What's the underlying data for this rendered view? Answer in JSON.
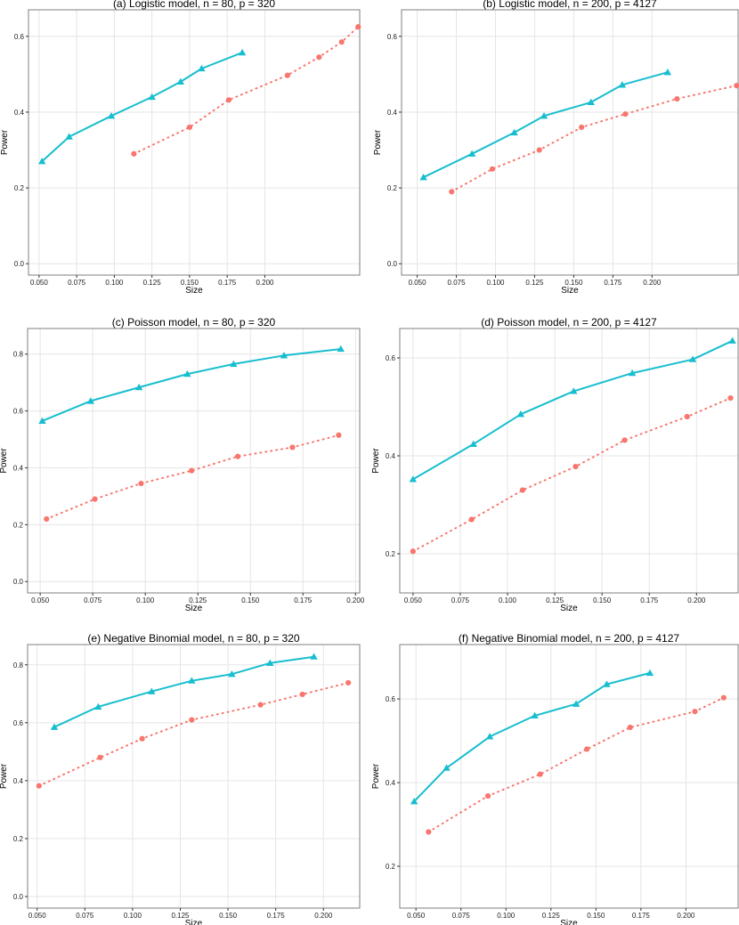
{
  "colors": {
    "series_triangle": "#17BECF",
    "series_circle": "#F8766D",
    "grid": "#E5E5E5",
    "panel_border": "#7F7F7F"
  },
  "chart_data": [
    {
      "type": "line",
      "title": "(a) Logistic model, n = 80, p = 320",
      "xlabel": "Size",
      "ylabel": "Power",
      "xlim": [
        0.043,
        0.263
      ],
      "ylim": [
        -0.03,
        0.67
      ],
      "xticks": [
        0.05,
        0.075,
        0.1,
        0.125,
        0.15,
        0.175,
        0.2
      ],
      "xtick_labels": [
        "0.050",
        "0.075",
        "0.100",
        "0.125",
        "0.150",
        "0.175",
        "0.200"
      ],
      "yticks": [
        0,
        0.2,
        0.4,
        0.6
      ],
      "ytick_labels": [
        "0.0",
        "0.2",
        "0.4",
        "0.6"
      ],
      "series": [
        {
          "name": "triangle solid",
          "marker": "triangle",
          "dash": "solid",
          "x": [
            0.052,
            0.07,
            0.098,
            0.125,
            0.144,
            0.158,
            0.185
          ],
          "y": [
            0.27,
            0.335,
            0.39,
            0.44,
            0.48,
            0.515,
            0.557
          ]
        },
        {
          "name": "circle dotted",
          "marker": "circle",
          "dash": "dotted",
          "x": [
            0.113,
            0.15,
            0.176,
            0.215,
            0.236,
            0.251,
            0.262
          ],
          "y": [
            0.29,
            0.36,
            0.432,
            0.497,
            0.545,
            0.585,
            0.625
          ]
        }
      ]
    },
    {
      "type": "line",
      "title": "(b) Logistic model, n = 200, p = 4127",
      "xlabel": "Size",
      "ylabel": "Power",
      "xlim": [
        0.04,
        0.255
      ],
      "ylim": [
        -0.03,
        0.67
      ],
      "xticks": [
        0.05,
        0.075,
        0.1,
        0.125,
        0.15,
        0.175,
        0.2
      ],
      "xtick_labels": [
        "0.050",
        "0.075",
        "0.100",
        "0.125",
        "0.150",
        "0.175",
        "0.200"
      ],
      "yticks": [
        0,
        0.2,
        0.4,
        0.6
      ],
      "ytick_labels": [
        "0.0",
        "0.2",
        "0.4",
        "0.6"
      ],
      "series": [
        {
          "name": "triangle solid",
          "marker": "triangle",
          "dash": "solid",
          "x": [
            0.054,
            0.085,
            0.112,
            0.131,
            0.161,
            0.181,
            0.21
          ],
          "y": [
            0.228,
            0.29,
            0.346,
            0.39,
            0.426,
            0.472,
            0.505
          ]
        },
        {
          "name": "circle dotted",
          "marker": "circle",
          "dash": "dotted",
          "x": [
            0.072,
            0.098,
            0.128,
            0.155,
            0.183,
            0.216,
            0.254
          ],
          "y": [
            0.19,
            0.25,
            0.3,
            0.36,
            0.395,
            0.435,
            0.47
          ]
        }
      ]
    },
    {
      "type": "line",
      "title": "(c) Poisson model, n = 80, p = 320",
      "xlabel": "Size",
      "ylabel": "Power",
      "xlim": [
        0.044,
        0.202
      ],
      "ylim": [
        -0.04,
        0.89
      ],
      "xticks": [
        0.05,
        0.075,
        0.1,
        0.125,
        0.15,
        0.175,
        0.2
      ],
      "xtick_labels": [
        "0.050",
        "0.075",
        "0.100",
        "0.125",
        "0.150",
        "0.175",
        "0.200"
      ],
      "yticks": [
        0,
        0.2,
        0.4,
        0.6,
        0.8
      ],
      "ytick_labels": [
        "0.0",
        "0.2",
        "0.4",
        "0.6",
        "0.8"
      ],
      "series": [
        {
          "name": "triangle solid",
          "marker": "triangle",
          "dash": "solid",
          "x": [
            0.051,
            0.074,
            0.097,
            0.12,
            0.142,
            0.166,
            0.193
          ],
          "y": [
            0.565,
            0.635,
            0.683,
            0.73,
            0.765,
            0.795,
            0.818
          ]
        },
        {
          "name": "circle dotted",
          "marker": "circle",
          "dash": "dotted",
          "x": [
            0.053,
            0.076,
            0.098,
            0.122,
            0.144,
            0.17,
            0.192
          ],
          "y": [
            0.22,
            0.29,
            0.345,
            0.39,
            0.44,
            0.472,
            0.515
          ]
        }
      ]
    },
    {
      "type": "line",
      "title": "(d) Poisson model, n = 200, p = 4127",
      "xlabel": "Size",
      "ylabel": "Power",
      "xlim": [
        0.043,
        0.222
      ],
      "ylim": [
        0.12,
        0.66
      ],
      "xticks": [
        0.05,
        0.075,
        0.1,
        0.125,
        0.15,
        0.175,
        0.2
      ],
      "xtick_labels": [
        "0.050",
        "0.075",
        "0.100",
        "0.125",
        "0.150",
        "0.175",
        "0.200"
      ],
      "yticks": [
        0.2,
        0.4,
        0.6
      ],
      "ytick_labels": [
        "0.2",
        "0.4",
        "0.6"
      ],
      "series": [
        {
          "name": "triangle solid",
          "marker": "triangle",
          "dash": "solid",
          "x": [
            0.05,
            0.082,
            0.107,
            0.135,
            0.166,
            0.198,
            0.219
          ],
          "y": [
            0.352,
            0.424,
            0.485,
            0.532,
            0.569,
            0.597,
            0.635
          ]
        },
        {
          "name": "circle dotted",
          "marker": "circle",
          "dash": "dotted",
          "x": [
            0.05,
            0.081,
            0.108,
            0.136,
            0.162,
            0.195,
            0.218
          ],
          "y": [
            0.205,
            0.27,
            0.33,
            0.378,
            0.432,
            0.48,
            0.518
          ]
        }
      ]
    },
    {
      "type": "line",
      "title": "(e) Negative Binomial model, n = 80, p = 320",
      "xlabel": "Size",
      "ylabel": "Power",
      "xlim": [
        0.045,
        0.219
      ],
      "ylim": [
        -0.04,
        0.87
      ],
      "xticks": [
        0.05,
        0.075,
        0.1,
        0.125,
        0.15,
        0.175,
        0.2
      ],
      "xtick_labels": [
        "0.050",
        "0.075",
        "0.100",
        "0.125",
        "0.150",
        "0.175",
        "0.200"
      ],
      "yticks": [
        0,
        0.2,
        0.4,
        0.6,
        0.8
      ],
      "ytick_labels": [
        "0.0",
        "0.2",
        "0.4",
        "0.6",
        "0.8"
      ],
      "series": [
        {
          "name": "triangle solid",
          "marker": "triangle",
          "dash": "solid",
          "x": [
            0.059,
            0.082,
            0.11,
            0.131,
            0.152,
            0.172,
            0.195
          ],
          "y": [
            0.585,
            0.655,
            0.708,
            0.745,
            0.768,
            0.806,
            0.828
          ]
        },
        {
          "name": "circle dotted",
          "marker": "circle",
          "dash": "dotted",
          "x": [
            0.051,
            0.083,
            0.105,
            0.131,
            0.167,
            0.189,
            0.213
          ],
          "y": [
            0.382,
            0.48,
            0.545,
            0.61,
            0.662,
            0.698,
            0.738
          ]
        }
      ]
    },
    {
      "type": "line",
      "title": "(f) Negative Binomial model, n = 200, p = 4127",
      "xlabel": "Size",
      "ylabel": "Power",
      "xlim": [
        0.041,
        0.229
      ],
      "ylim": [
        0.1,
        0.73
      ],
      "xticks": [
        0.05,
        0.075,
        0.1,
        0.125,
        0.15,
        0.175,
        0.2
      ],
      "xtick_labels": [
        "0.050",
        "0.075",
        "0.100",
        "0.125",
        "0.150",
        "0.175",
        "0.200"
      ],
      "yticks": [
        0.2,
        0.4,
        0.6
      ],
      "ytick_labels": [
        "0.2",
        "0.4",
        "0.6"
      ],
      "series": [
        {
          "name": "triangle solid",
          "marker": "triangle",
          "dash": "solid",
          "x": [
            0.049,
            0.067,
            0.091,
            0.116,
            0.139,
            0.156,
            0.18
          ],
          "y": [
            0.355,
            0.435,
            0.51,
            0.56,
            0.588,
            0.635,
            0.662
          ]
        },
        {
          "name": "circle dotted",
          "marker": "circle",
          "dash": "dotted",
          "x": [
            0.057,
            0.09,
            0.119,
            0.145,
            0.169,
            0.205,
            0.221
          ],
          "y": [
            0.282,
            0.368,
            0.42,
            0.48,
            0.532,
            0.57,
            0.603
          ]
        }
      ]
    }
  ]
}
